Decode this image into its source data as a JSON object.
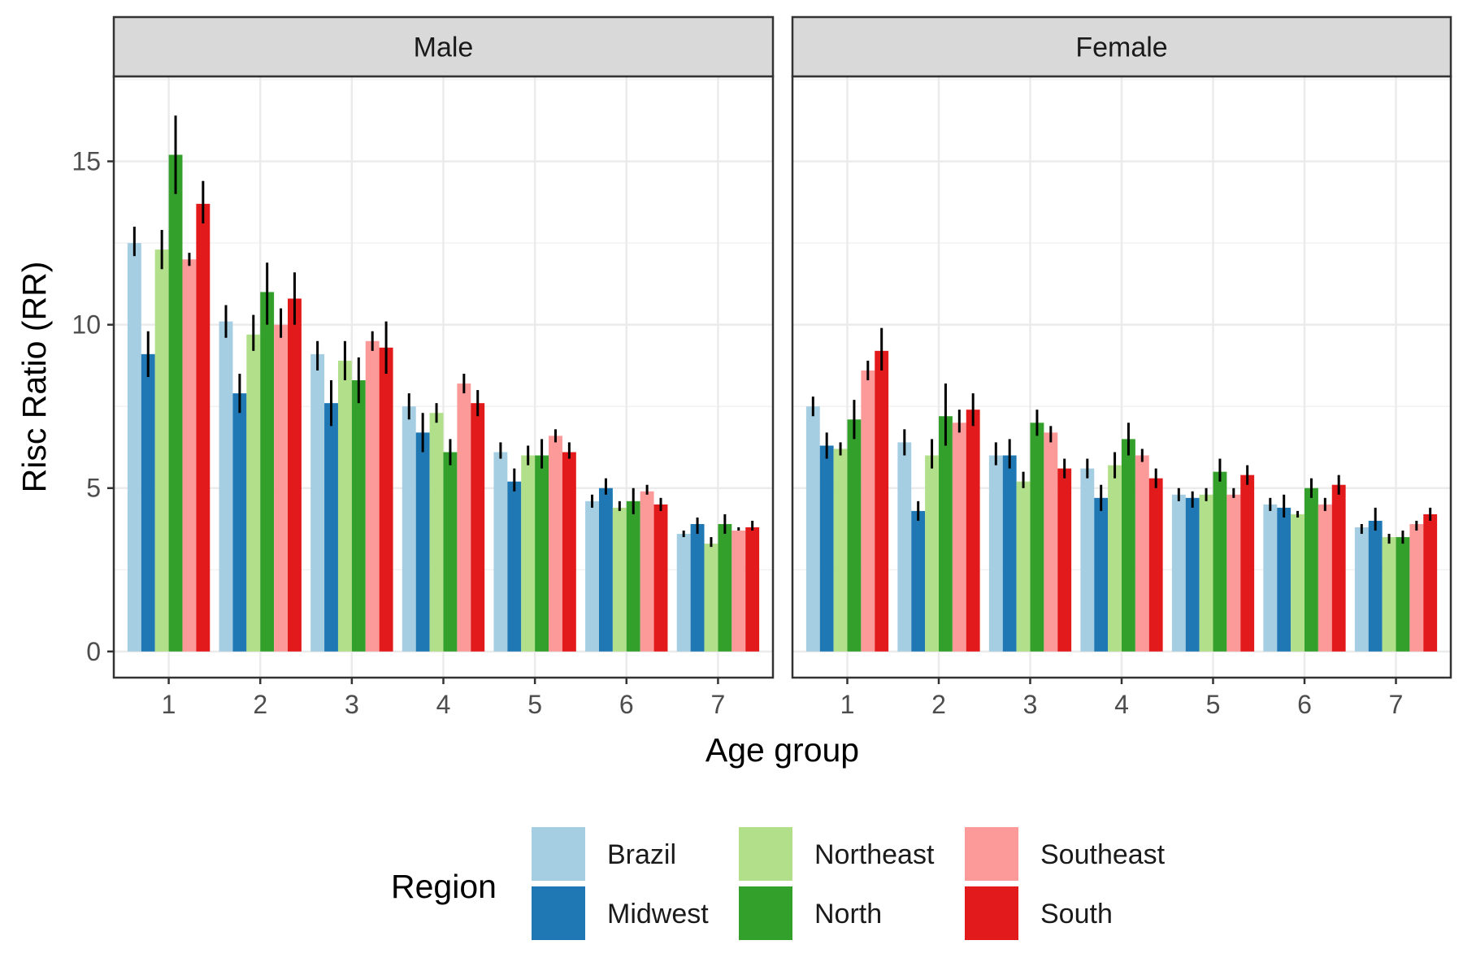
{
  "chart_data": {
    "type": "bar",
    "title": "",
    "xlabel": "Age group",
    "ylabel": "Risc Ratio (RR)",
    "ylim": [
      -0.8,
      17.6
    ],
    "yticks": [
      0,
      5,
      10,
      15
    ],
    "categories": [
      "1",
      "2",
      "3",
      "4",
      "5",
      "6",
      "7"
    ],
    "grid": true,
    "legend": {
      "title": "Region",
      "position": "bottom",
      "entries": [
        "Brazil",
        "Midwest",
        "Northeast",
        "North",
        "Southeast",
        "South"
      ]
    },
    "colors": {
      "Brazil": "#a6cee3",
      "Midwest": "#1f78b4",
      "Northeast": "#b2df8a",
      "North": "#33a02c",
      "Southeast": "#fb9a99",
      "South": "#e31a1c"
    },
    "panels": [
      {
        "label": "Male",
        "series": [
          {
            "name": "Brazil",
            "values": [
              12.5,
              10.1,
              9.1,
              7.5,
              6.1,
              4.6,
              3.6
            ],
            "error": [
              [
                12.1,
                13.0
              ],
              [
                9.6,
                10.6
              ],
              [
                8.6,
                9.5
              ],
              [
                7.1,
                7.9
              ],
              [
                5.9,
                6.4
              ],
              [
                4.4,
                4.8
              ],
              [
                3.5,
                3.7
              ]
            ]
          },
          {
            "name": "Midwest",
            "values": [
              9.1,
              7.9,
              7.6,
              6.7,
              5.2,
              5.0,
              3.9
            ],
            "error": [
              [
                8.4,
                9.8
              ],
              [
                7.3,
                8.5
              ],
              [
                6.9,
                8.3
              ],
              [
                6.1,
                7.3
              ],
              [
                4.9,
                5.6
              ],
              [
                4.8,
                5.3
              ],
              [
                3.6,
                4.1
              ]
            ]
          },
          {
            "name": "Northeast",
            "values": [
              12.3,
              9.7,
              8.9,
              7.3,
              6.0,
              4.4,
              3.3
            ],
            "error": [
              [
                11.7,
                12.9
              ],
              [
                9.2,
                10.3
              ],
              [
                8.3,
                9.5
              ],
              [
                7.0,
                7.6
              ],
              [
                5.7,
                6.3
              ],
              [
                4.3,
                4.6
              ],
              [
                3.2,
                3.5
              ]
            ]
          },
          {
            "name": "North",
            "values": [
              15.2,
              11.0,
              8.3,
              6.1,
              6.0,
              4.6,
              3.9
            ],
            "error": [
              [
                14.0,
                16.4
              ],
              [
                10.0,
                11.9
              ],
              [
                7.6,
                9.0
              ],
              [
                5.7,
                6.5
              ],
              [
                5.6,
                6.5
              ],
              [
                4.2,
                5.0
              ],
              [
                3.6,
                4.2
              ]
            ]
          },
          {
            "name": "Southeast",
            "values": [
              12.0,
              10.0,
              9.5,
              8.2,
              6.6,
              4.9,
              3.7
            ],
            "error": [
              [
                11.8,
                12.2
              ],
              [
                9.6,
                10.5
              ],
              [
                9.2,
                9.8
              ],
              [
                7.9,
                8.5
              ],
              [
                6.4,
                6.8
              ],
              [
                4.8,
                5.1
              ],
              [
                3.7,
                3.8
              ]
            ]
          },
          {
            "name": "South",
            "values": [
              13.7,
              10.8,
              9.3,
              7.6,
              6.1,
              4.5,
              3.8
            ],
            "error": [
              [
                13.1,
                14.4
              ],
              [
                10.0,
                11.6
              ],
              [
                8.5,
                10.1
              ],
              [
                7.2,
                8.0
              ],
              [
                5.9,
                6.4
              ],
              [
                4.3,
                4.7
              ],
              [
                3.7,
                4.0
              ]
            ]
          }
        ]
      },
      {
        "label": "Female",
        "series": [
          {
            "name": "Brazil",
            "values": [
              7.5,
              6.4,
              6.0,
              5.6,
              4.8,
              4.5,
              3.8
            ],
            "error": [
              [
                7.2,
                7.8
              ],
              [
                6.0,
                6.8
              ],
              [
                5.7,
                6.4
              ],
              [
                5.3,
                5.9
              ],
              [
                4.6,
                5.0
              ],
              [
                4.3,
                4.7
              ],
              [
                3.6,
                3.9
              ]
            ]
          },
          {
            "name": "Midwest",
            "values": [
              6.3,
              4.3,
              6.0,
              4.7,
              4.7,
              4.4,
              4.0
            ],
            "error": [
              [
                5.9,
                6.7
              ],
              [
                4.0,
                4.6
              ],
              [
                5.6,
                6.5
              ],
              [
                4.3,
                5.1
              ],
              [
                4.4,
                4.9
              ],
              [
                4.1,
                4.8
              ],
              [
                3.7,
                4.4
              ]
            ]
          },
          {
            "name": "Northeast",
            "values": [
              6.2,
              6.0,
              5.2,
              5.7,
              4.8,
              4.2,
              3.5
            ],
            "error": [
              [
                6.0,
                6.4
              ],
              [
                5.6,
                6.5
              ],
              [
                5.0,
                5.5
              ],
              [
                5.3,
                6.1
              ],
              [
                4.6,
                5.0
              ],
              [
                4.1,
                4.3
              ],
              [
                3.3,
                3.6
              ]
            ]
          },
          {
            "name": "North",
            "values": [
              7.1,
              7.2,
              7.0,
              6.5,
              5.5,
              5.0,
              3.5
            ],
            "error": [
              [
                6.5,
                7.7
              ],
              [
                6.3,
                8.2
              ],
              [
                6.6,
                7.4
              ],
              [
                6.0,
                7.0
              ],
              [
                5.2,
                5.9
              ],
              [
                4.7,
                5.3
              ],
              [
                3.3,
                3.7
              ]
            ]
          },
          {
            "name": "Southeast",
            "values": [
              8.6,
              7.0,
              6.7,
              6.0,
              4.8,
              4.5,
              3.9
            ],
            "error": [
              [
                8.3,
                8.9
              ],
              [
                6.7,
                7.4
              ],
              [
                6.4,
                6.9
              ],
              [
                5.8,
                6.2
              ],
              [
                4.7,
                5.0
              ],
              [
                4.3,
                4.7
              ],
              [
                3.7,
                4.0
              ]
            ]
          },
          {
            "name": "South",
            "values": [
              9.2,
              7.4,
              5.6,
              5.3,
              5.4,
              5.1,
              4.2
            ],
            "error": [
              [
                8.6,
                9.9
              ],
              [
                6.9,
                7.9
              ],
              [
                5.3,
                5.9
              ],
              [
                5.0,
                5.6
              ],
              [
                5.1,
                5.7
              ],
              [
                4.8,
                5.4
              ],
              [
                4.0,
                4.4
              ]
            ]
          }
        ]
      }
    ]
  }
}
